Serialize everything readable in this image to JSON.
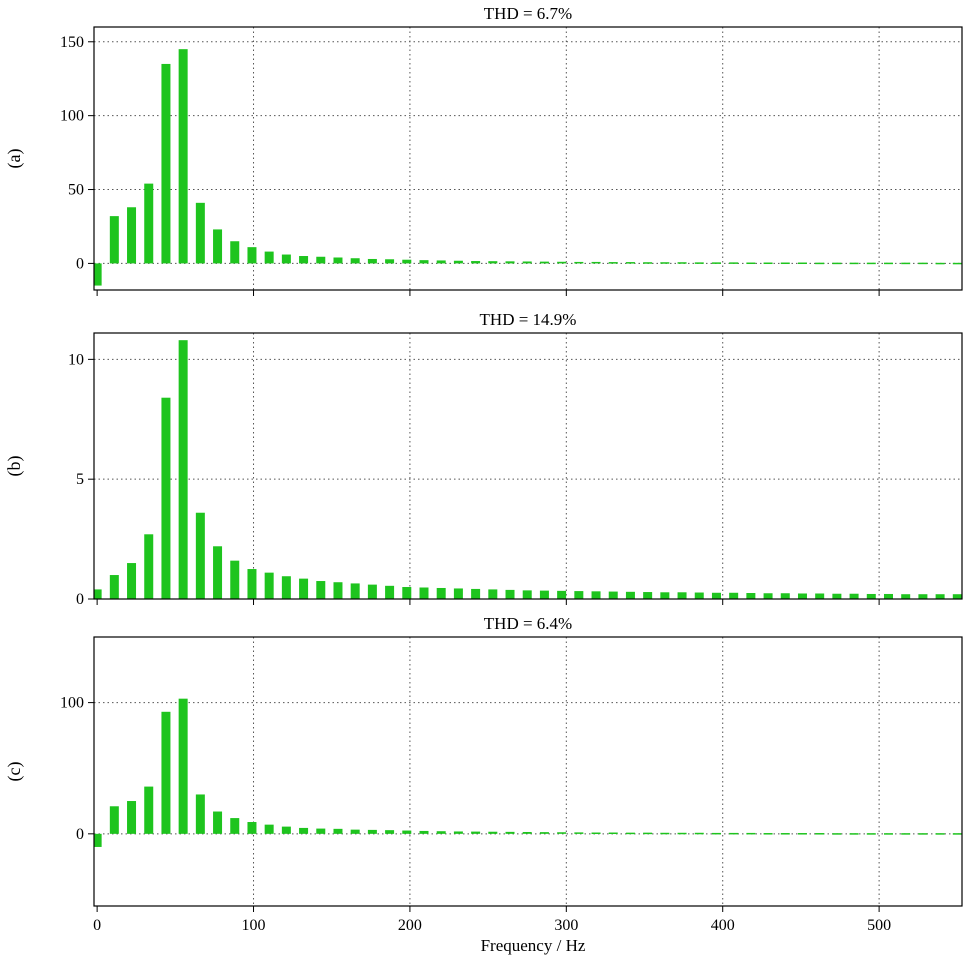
{
  "chart_data": [
    {
      "type": "bar",
      "panel_label": "(a)",
      "title": "THD = 6.7%",
      "color": "#1ec41e",
      "xlim": [
        -2,
        553
      ],
      "ylim": [
        -18,
        160
      ],
      "yticks": [
        0,
        50,
        100,
        150
      ],
      "x": [
        0,
        11,
        22,
        33,
        44,
        55,
        66,
        77,
        88,
        99,
        110,
        121,
        132,
        143,
        154,
        165,
        176,
        187,
        198,
        209,
        220,
        231,
        242,
        253,
        264,
        275,
        286,
        297,
        308,
        319,
        330,
        341,
        352,
        363,
        374,
        385,
        396,
        407,
        418,
        429,
        440,
        451,
        462,
        473,
        484,
        495,
        506,
        517,
        528,
        539,
        550
      ],
      "values": [
        -15,
        32,
        38,
        54,
        135,
        145,
        41,
        23,
        15,
        11,
        8,
        6,
        5,
        4.5,
        4,
        3.5,
        3,
        2.8,
        2.5,
        2.2,
        2.0,
        1.8,
        1.6,
        1.5,
        1.4,
        1.3,
        1.2,
        1.1,
        1.0,
        1.0,
        0.9,
        0.9,
        0.8,
        0.8,
        0.8,
        0.7,
        0.7,
        0.7,
        0.6,
        0.6,
        0.6,
        0.6,
        0.5,
        0.5,
        0.5,
        0.5,
        0.5,
        0.5,
        0.5,
        0.4,
        0.4
      ]
    },
    {
      "type": "bar",
      "panel_label": "(b)",
      "title": "THD = 14.9%",
      "color": "#1ec41e",
      "xlim": [
        -2,
        553
      ],
      "ylim": [
        0,
        11.1
      ],
      "yticks": [
        0,
        5,
        10
      ],
      "x": [
        0,
        11,
        22,
        33,
        44,
        55,
        66,
        77,
        88,
        99,
        110,
        121,
        132,
        143,
        154,
        165,
        176,
        187,
        198,
        209,
        220,
        231,
        242,
        253,
        264,
        275,
        286,
        297,
        308,
        319,
        330,
        341,
        352,
        363,
        374,
        385,
        396,
        407,
        418,
        429,
        440,
        451,
        462,
        473,
        484,
        495,
        506,
        517,
        528,
        539,
        550
      ],
      "values": [
        0.4,
        1.0,
        1.5,
        2.7,
        8.4,
        10.8,
        3.6,
        2.2,
        1.6,
        1.25,
        1.1,
        0.95,
        0.85,
        0.75,
        0.7,
        0.65,
        0.6,
        0.55,
        0.5,
        0.48,
        0.46,
        0.44,
        0.42,
        0.4,
        0.38,
        0.36,
        0.35,
        0.34,
        0.33,
        0.32,
        0.31,
        0.3,
        0.29,
        0.28,
        0.28,
        0.27,
        0.26,
        0.26,
        0.25,
        0.24,
        0.24,
        0.23,
        0.23,
        0.22,
        0.22,
        0.21,
        0.21,
        0.2,
        0.2,
        0.2,
        0.2
      ]
    },
    {
      "type": "bar",
      "panel_label": "(c)",
      "title": "THD = 6.4%",
      "color": "#1ec41e",
      "xlim": [
        -2,
        553
      ],
      "ylim": [
        -55,
        150
      ],
      "yticks": [
        0,
        100
      ],
      "x": [
        0,
        11,
        22,
        33,
        44,
        55,
        66,
        77,
        88,
        99,
        110,
        121,
        132,
        143,
        154,
        165,
        176,
        187,
        198,
        209,
        220,
        231,
        242,
        253,
        264,
        275,
        286,
        297,
        308,
        319,
        330,
        341,
        352,
        363,
        374,
        385,
        396,
        407,
        418,
        429,
        440,
        451,
        462,
        473,
        484,
        495,
        506,
        517,
        528,
        539,
        550
      ],
      "values": [
        -10,
        21,
        25,
        36,
        93,
        103,
        30,
        17,
        12,
        9,
        7,
        5.5,
        4.5,
        4,
        3.8,
        3.2,
        3,
        2.8,
        2.5,
        2.2,
        2.0,
        1.8,
        1.7,
        1.6,
        1.5,
        1.4,
        1.3,
        1.2,
        1.1,
        1.0,
        1.0,
        0.9,
        0.9,
        0.8,
        0.8,
        0.8,
        0.7,
        0.7,
        0.7,
        0.6,
        0.6,
        0.6,
        0.6,
        0.5,
        0.5,
        0.5,
        0.5,
        0.5,
        0.5,
        0.5,
        0.5
      ]
    }
  ],
  "xticks": [
    0,
    100,
    200,
    300,
    400,
    500
  ],
  "xlabel": "Frequency / Hz"
}
